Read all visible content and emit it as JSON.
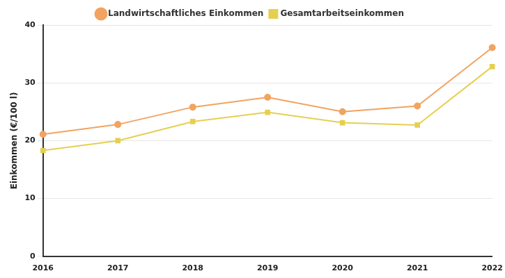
{
  "chart_data": {
    "type": "line",
    "categories": [
      "2016",
      "2017",
      "2018",
      "2019",
      "2020",
      "2021",
      "2022"
    ],
    "series": [
      {
        "name": "Landwirtschaftliches Einkommen",
        "color": "#f2a360",
        "marker": "circle",
        "values": [
          21.1,
          22.8,
          25.8,
          27.5,
          25.0,
          26.0,
          36.1
        ]
      },
      {
        "name": "Gesamtarbeitseinkommen",
        "color": "#e6cf50",
        "marker": "square",
        "values": [
          18.3,
          20.0,
          23.3,
          24.9,
          23.1,
          22.7,
          32.8
        ]
      }
    ],
    "y_label": "Einkommen (€/100 l)",
    "ylim": [
      0,
      40
    ],
    "yticks": [
      0,
      10,
      20,
      30,
      40
    ],
    "grid": true,
    "legend": "top"
  }
}
